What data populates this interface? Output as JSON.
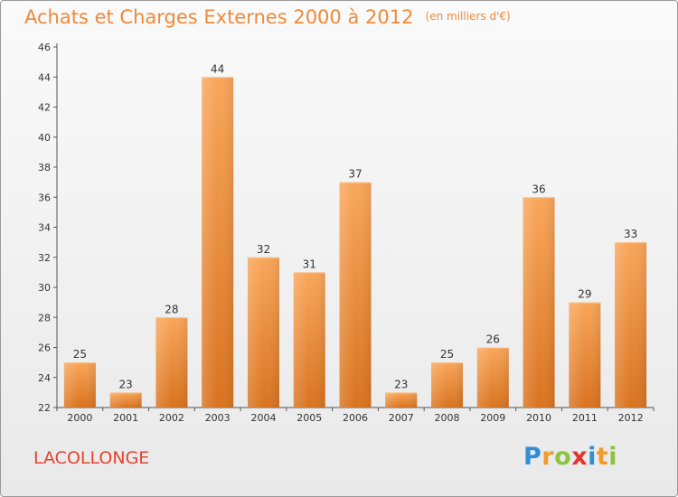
{
  "page": {
    "title": "Achats et Charges Externes 2000 à 2012",
    "unit_label": "(en milliers d'€)",
    "commune": "LACOLLONGE",
    "logo": {
      "text": "Proxiti",
      "letters": [
        {
          "char": "P",
          "color": "#2f8ed6"
        },
        {
          "char": "r",
          "color": "#f39b2a"
        },
        {
          "char": "o",
          "color": "#8cc43f"
        },
        {
          "char": "x",
          "color": "#e3342f"
        },
        {
          "char": "i",
          "color": "#2f8ed6"
        },
        {
          "char": "t",
          "color": "#f39b2a"
        },
        {
          "char": "i",
          "color": "#8cc43f"
        }
      ]
    }
  },
  "colors": {
    "bar_light": "#f9a65a",
    "bar_dark": "#d9731f",
    "axis": "#555555",
    "grid": "#bfbfbf",
    "text": "#333333",
    "title": "#ee8a3c",
    "commune": "#e4442e"
  },
  "chart_data": {
    "type": "bar",
    "title": "Achats et Charges Externes 2000 à 2012",
    "subtitle": "(en milliers d'€)",
    "categories": [
      "2000",
      "2001",
      "2002",
      "2003",
      "2004",
      "2005",
      "2006",
      "2007",
      "2008",
      "2009",
      "2010",
      "2011",
      "2012"
    ],
    "values": [
      25,
      23,
      28,
      44,
      32,
      31,
      37,
      23,
      25,
      26,
      36,
      29,
      33
    ],
    "ylim": [
      22,
      46
    ],
    "yticks": [
      22,
      24,
      26,
      28,
      30,
      32,
      34,
      36,
      38,
      40,
      42,
      44,
      46
    ],
    "grid": false,
    "legend": "none",
    "data_labels": true
  }
}
